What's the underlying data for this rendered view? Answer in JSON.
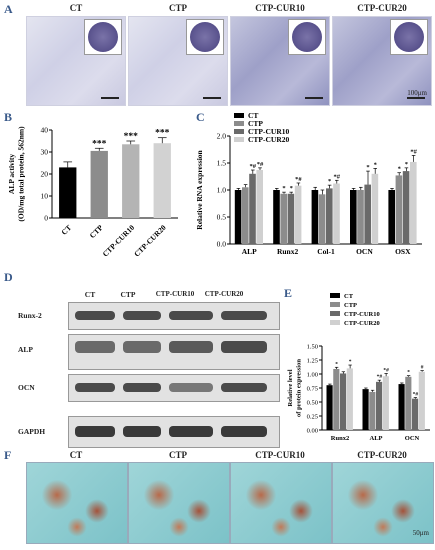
{
  "panelA": {
    "letter": "A",
    "titles": [
      "CT",
      "CTP",
      "CTP-CUR10",
      "CTP-CUR20"
    ],
    "scale_label": "100μm"
  },
  "panelB": {
    "letter": "B"
  },
  "panelC": {
    "letter": "C"
  },
  "panelD": {
    "letter": "D",
    "columns": [
      "CT",
      "CTP",
      "CTP-CUR10",
      "CTP-CUR20"
    ],
    "rows": [
      "Runx-2",
      "ALP",
      "OCN",
      "GAPDH"
    ]
  },
  "panelE": {
    "letter": "E"
  },
  "panelF": {
    "letter": "F",
    "titles": [
      "CT",
      "CTP",
      "CTP-CUR10",
      "CTP-CUR20"
    ],
    "scale_label": "50μm"
  },
  "chart_data": [
    {
      "type": "bar",
      "panel": "B",
      "categories": [
        "CT",
        "CTP",
        "CTP-CUR10",
        "CTP-CUR20"
      ],
      "values": [
        23,
        30.5,
        33.5,
        34
      ],
      "errors": [
        2.5,
        1.2,
        1.5,
        2.5
      ],
      "significance": [
        "",
        "***",
        "***",
        "***"
      ],
      "ylabel": "ALP activity\n(OD/mg total protein, 562nm)",
      "ylim": [
        0,
        40
      ],
      "yticks": [
        0,
        10,
        20,
        30,
        40
      ],
      "colors": [
        "#000000",
        "#8c8c8c",
        "#b4b4b4",
        "#d2d2d2"
      ]
    },
    {
      "type": "bar",
      "panel": "C",
      "categories": [
        "ALP",
        "Runx2",
        "Col-1",
        "OCN",
        "OSX"
      ],
      "series": [
        {
          "name": "CT",
          "values": [
            1.0,
            1.0,
            1.0,
            1.0,
            1.0
          ],
          "errors": [
            0.03,
            0.03,
            0.05,
            0.03,
            0.03
          ],
          "marks": [
            "",
            "",
            "",
            "",
            ""
          ]
        },
        {
          "name": "CTP",
          "values": [
            1.05,
            0.93,
            0.92,
            1.0,
            1.27
          ],
          "errors": [
            0.05,
            0.03,
            0.08,
            0.05,
            0.05
          ],
          "marks": [
            "",
            "*",
            "",
            "",
            "*"
          ]
        },
        {
          "name": "CTP-CUR10",
          "values": [
            1.3,
            0.93,
            1.03,
            1.1,
            1.35
          ],
          "errors": [
            0.07,
            0.03,
            0.06,
            0.25,
            0.06
          ],
          "marks": [
            "*#",
            "*",
            "*",
            "*",
            "*"
          ]
        },
        {
          "name": "CTP-CUR20",
          "values": [
            1.37,
            1.08,
            1.12,
            1.3,
            1.52
          ],
          "errors": [
            0.04,
            0.05,
            0.06,
            0.1,
            0.12
          ],
          "marks": [
            "*#",
            "*#",
            "*#",
            "*",
            "*#"
          ]
        }
      ],
      "ylabel": "Relative RNA expression",
      "ylim": [
        0,
        2.0
      ],
      "yticks": [
        0,
        0.5,
        1.0,
        1.5,
        2.0
      ],
      "legend": "top-left",
      "colors": [
        "#000000",
        "#8c8c8c",
        "#6a6a6a",
        "#d0d0d0"
      ]
    },
    {
      "type": "bar",
      "panel": "E",
      "categories": [
        "Runx2",
        "ALP",
        "OCN"
      ],
      "series": [
        {
          "name": "CT",
          "values": [
            0.8,
            0.73,
            0.82
          ],
          "errors": [
            0.02,
            0.02,
            0.02
          ],
          "marks": [
            "",
            "",
            ""
          ]
        },
        {
          "name": "CTP",
          "values": [
            1.09,
            0.68,
            0.95
          ],
          "errors": [
            0.03,
            0.03,
            0.02
          ],
          "marks": [
            "*",
            "",
            "*"
          ]
        },
        {
          "name": "CTP-CUR10",
          "values": [
            1.01,
            0.86,
            0.56
          ],
          "errors": [
            0.03,
            0.03,
            0.02
          ],
          "marks": [
            "",
            "*#",
            "*#"
          ]
        },
        {
          "name": "CTP-CUR20",
          "values": [
            1.1,
            0.96,
            1.04
          ],
          "errors": [
            0.06,
            0.05,
            0.02
          ],
          "marks": [
            "*",
            "*#",
            "#"
          ]
        }
      ],
      "ylabel": "Relative level\nof protein expression",
      "ylim": [
        0,
        1.5
      ],
      "yticks": [
        0.0,
        0.25,
        0.5,
        0.75,
        1.0,
        1.25,
        1.5
      ],
      "legend": "top-left",
      "colors": [
        "#000000",
        "#8c8c8c",
        "#6a6a6a",
        "#d0d0d0"
      ]
    }
  ]
}
